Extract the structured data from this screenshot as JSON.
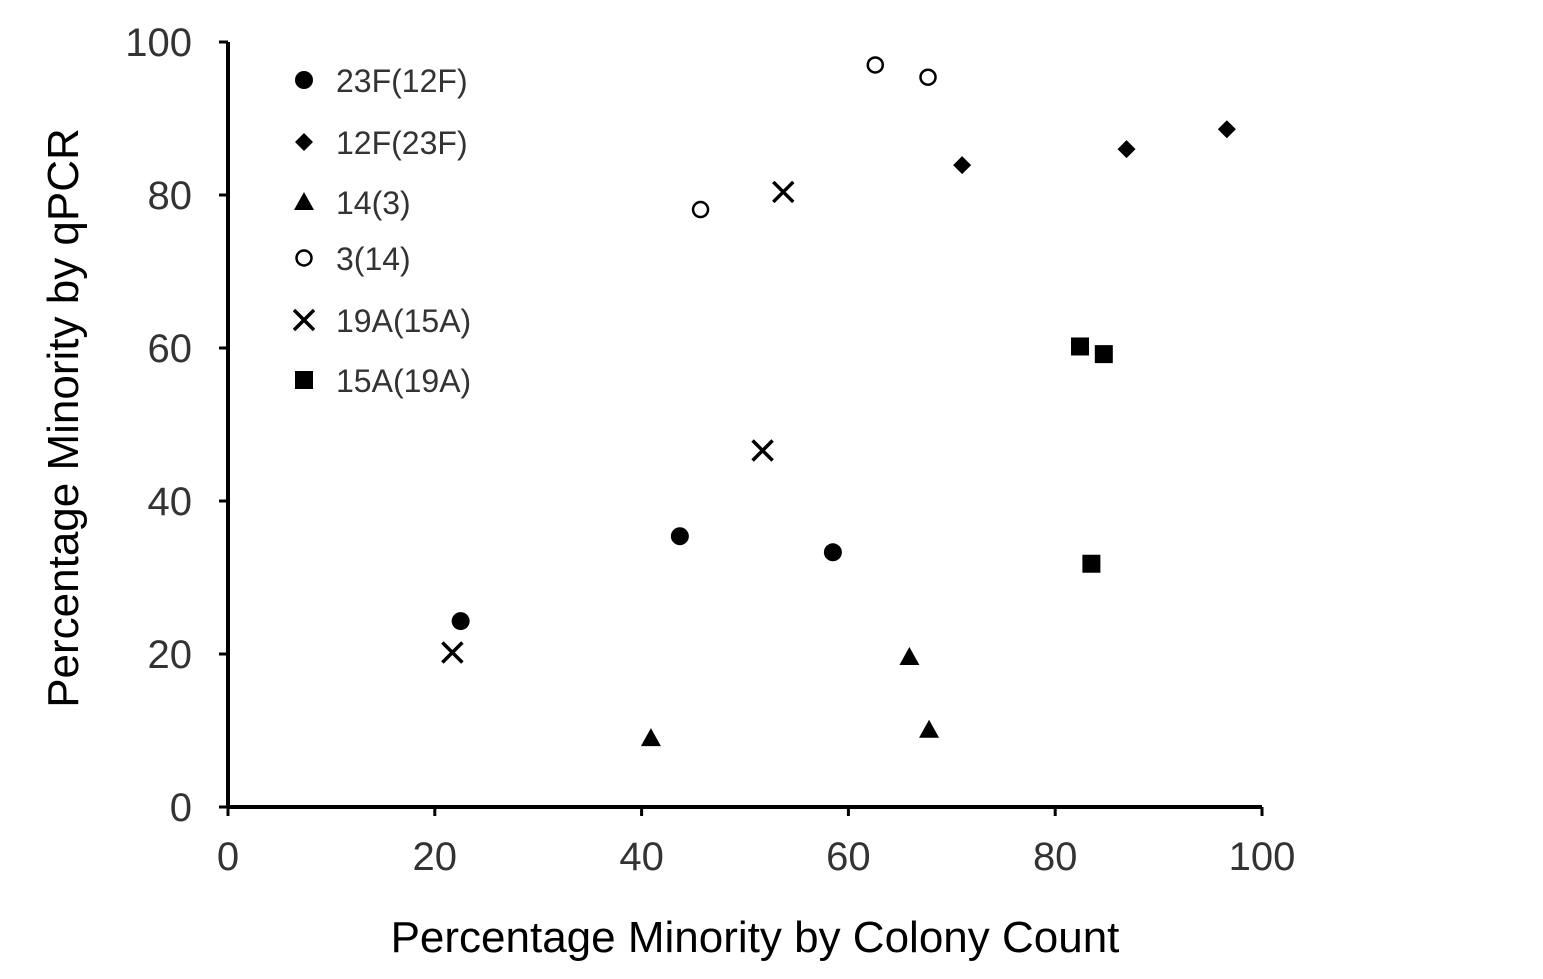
{
  "chart_data": {
    "type": "scatter",
    "xlabel": "Percentage Minority by Colony Count",
    "ylabel": "Percentage Minority by qPCR",
    "xlim": [
      0,
      100
    ],
    "ylim": [
      0,
      100
    ],
    "x_ticks": [
      0,
      20,
      40,
      60,
      80,
      100
    ],
    "y_ticks": [
      0,
      20,
      40,
      60,
      80,
      100
    ],
    "grid": false,
    "legend_position": "top-left",
    "series": [
      {
        "name": "23F(12F)",
        "marker": "circle-filled",
        "points": [
          [
            22.5,
            24.3
          ],
          [
            43.7,
            35.4
          ],
          [
            58.5,
            33.3
          ]
        ]
      },
      {
        "name": "12F(23F)",
        "marker": "diamond-filled",
        "points": [
          [
            71.0,
            83.9
          ],
          [
            86.9,
            86.0
          ],
          [
            96.6,
            88.6
          ]
        ]
      },
      {
        "name": "14(3)",
        "marker": "triangle-filled",
        "points": [
          [
            40.9,
            9.0
          ],
          [
            65.9,
            19.6
          ],
          [
            67.8,
            10.1
          ]
        ]
      },
      {
        "name": "3(14)",
        "marker": "circle-open",
        "points": [
          [
            45.7,
            78.1
          ],
          [
            62.6,
            97.0
          ],
          [
            67.7,
            95.4
          ]
        ]
      },
      {
        "name": "19A(15A)",
        "marker": "x",
        "points": [
          [
            21.7,
            20.2
          ],
          [
            51.7,
            46.6
          ],
          [
            53.7,
            80.4
          ]
        ]
      },
      {
        "name": "15A(19A)",
        "marker": "square-filled",
        "points": [
          [
            82.4,
            60.2
          ],
          [
            84.7,
            59.2
          ],
          [
            83.5,
            31.8
          ]
        ]
      }
    ],
    "colors": {
      "marker": "#000000",
      "axis": "#000000",
      "text": "#333333"
    }
  }
}
